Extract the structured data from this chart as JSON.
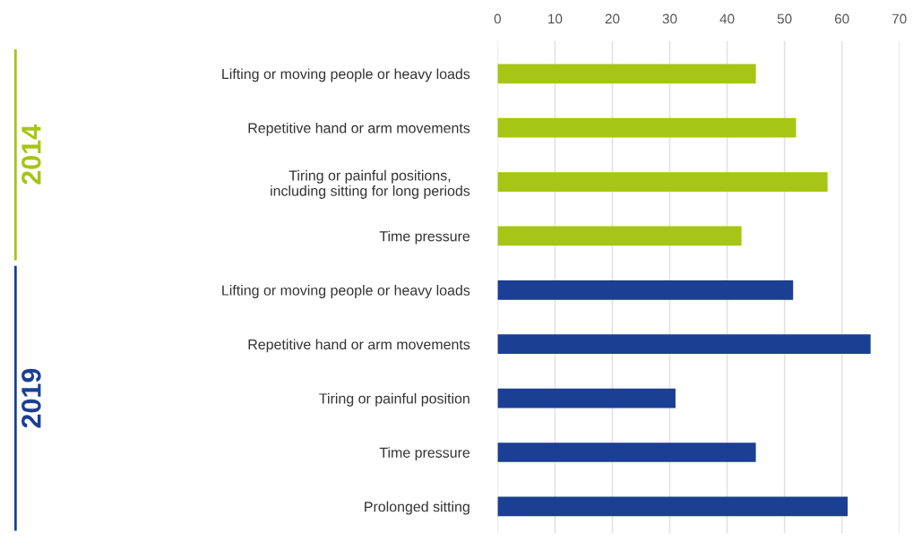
{
  "chart_data": {
    "type": "bar",
    "orientation": "horizontal",
    "categories": [
      "Lifting or moving people or heavy loads",
      "Repetitive hand or arm movements",
      "Tiring or painful positions,\nincluding sitting for long periods",
      "Time pressure",
      "Lifting or moving people or heavy loads",
      "Repetitive hand or arm movements",
      "Tiring or painful position",
      "Time pressure",
      "Prolonged sitting"
    ],
    "series": [
      {
        "name": "2014",
        "color": "#a6c514",
        "values": [
          45,
          52,
          57.5,
          42.5,
          null,
          null,
          null,
          null,
          null
        ]
      },
      {
        "name": "2019",
        "color": "#1a3f93",
        "values": [
          null,
          null,
          null,
          null,
          51.5,
          65,
          31,
          45,
          61
        ]
      }
    ],
    "xlim": [
      0,
      70
    ],
    "xticks": [
      0,
      10,
      20,
      30,
      40,
      50,
      60,
      70
    ],
    "grid": "x"
  }
}
